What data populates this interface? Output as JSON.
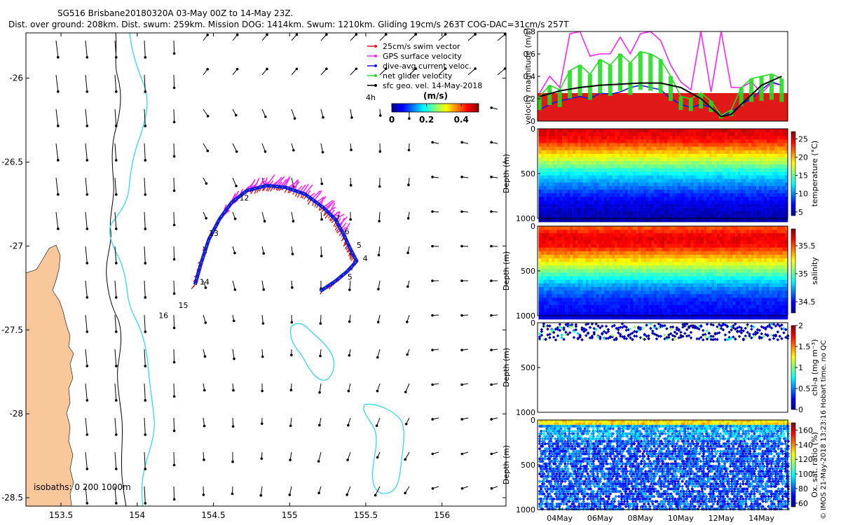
{
  "header": {
    "line1": "SG516 Brisbane20180320A 03-May 00Z to 14-May 23Z.",
    "line2": "Dist. over ground: 208km. Dist. swum: 259km. Mission DOG: 1414km. Swum: 1210km. Gliding 19cm/s 263T COG-DAC=31cm/s 257T"
  },
  "credit": "© IMOS 21-May-2018 13:23:16 Hobart time. no QC",
  "colors": {
    "land": "#f8c89a",
    "isobath_200": "#000000",
    "isobath_1000": "#22d8e8",
    "swim": "#e01818",
    "gps": "#ff20ff",
    "dac": "#1818e0",
    "net": "#22dd22",
    "sfc": "#000000"
  },
  "chart_data": [
    {
      "type": "map",
      "x_ticks": [
        153.5,
        154,
        154.5,
        155,
        155.5,
        156
      ],
      "x_tick_labels": [
        "153.5",
        "154",
        "154.5",
        "155",
        "155.5",
        "156"
      ],
      "y_ticks": [
        -26,
        -26.5,
        -27,
        -27.5,
        -28,
        -28.5
      ],
      "y_tick_labels": [
        "-26",
        "-26.5",
        "-27",
        "-27.5",
        "-28",
        "-28.5"
      ],
      "xlim": [
        153.27,
        156.42
      ],
      "ylim": [
        -28.55,
        -25.73
      ],
      "legend": {
        "position": "top-right",
        "entries": [
          {
            "label": "25cm/s swim vector",
            "color": "#e01818"
          },
          {
            "label": "GPS surface velocity",
            "color": "#ff20ff"
          },
          {
            "label": "dive-avg current veloc.",
            "color": "#1818e0"
          },
          {
            "label": "net glider velocity",
            "color": "#22dd22"
          },
          {
            "label": "sfc geo. vel. 14-May-2018",
            "color": "#000000"
          }
        ],
        "colorbar_title": "(m/s)",
        "colorbar_ticks": [
          0,
          0.2,
          0.4
        ],
        "colorbar_tick_labels": [
          "0",
          "0.2",
          "0.4"
        ],
        "colorbar_range": [
          0,
          0.5
        ],
        "vector_scale_label": "4h"
      },
      "isobath_label": "isobaths: 0   200   1000m",
      "track": [
        {
          "lon": 154.38,
          "lat": -27.23
        },
        {
          "lon": 154.42,
          "lat": -27.1
        },
        {
          "lon": 154.47,
          "lat": -26.96
        },
        {
          "lon": 154.54,
          "lat": -26.84
        },
        {
          "lon": 154.62,
          "lat": -26.74
        },
        {
          "lon": 154.72,
          "lat": -26.67
        },
        {
          "lon": 154.85,
          "lat": -26.64
        },
        {
          "lon": 154.97,
          "lat": -26.65
        },
        {
          "lon": 155.1,
          "lat": -26.69
        },
        {
          "lon": 155.22,
          "lat": -26.77
        },
        {
          "lon": 155.3,
          "lat": -26.84
        },
        {
          "lon": 155.36,
          "lat": -26.94
        },
        {
          "lon": 155.4,
          "lat": -27.02
        },
        {
          "lon": 155.44,
          "lat": -27.09
        },
        {
          "lon": 155.38,
          "lat": -27.15
        },
        {
          "lon": 155.3,
          "lat": -27.21
        },
        {
          "lon": 155.2,
          "lat": -27.27
        }
      ],
      "day_labels": [
        {
          "text": "4",
          "lon": 155.48,
          "lat": -27.09
        },
        {
          "text": "5",
          "lon": 155.38,
          "lat": -27.2
        },
        {
          "text": "5",
          "lon": 155.44,
          "lat": -27.01
        },
        {
          "text": "6",
          "lon": 155.36,
          "lat": -26.93
        },
        {
          "text": "7",
          "lon": 155.3,
          "lat": -26.85
        },
        {
          "text": "12",
          "lon": 154.67,
          "lat": -26.73
        },
        {
          "text": "13",
          "lon": 154.47,
          "lat": -26.94
        },
        {
          "text": "14",
          "lon": 154.41,
          "lat": -27.23
        },
        {
          "text": "15",
          "lon": 154.27,
          "lat": -27.37
        },
        {
          "text": "16",
          "lon": 154.14,
          "lat": -27.43
        }
      ]
    },
    {
      "type": "line",
      "ylabel": "velocity magnitude (m/s)",
      "ylim": [
        0,
        0.8
      ],
      "y_ticks": [
        0,
        0.2,
        0.4,
        0.6,
        0.8
      ],
      "y_tick_labels": [
        "0",
        "0.2",
        "0.4",
        "0.6",
        "0.8"
      ],
      "xlim": [
        2.9,
        15.3
      ],
      "series": [
        {
          "name": "GPS surface velocity",
          "color": "#ff20ff",
          "x": [
            3,
            3.5,
            4,
            4.5,
            5,
            5.5,
            6,
            6.5,
            7,
            7.5,
            8,
            8.5,
            9,
            9.5,
            10,
            10.5,
            11,
            11.5,
            12,
            12.5,
            13,
            13.5,
            14,
            14.5,
            15
          ],
          "y": [
            0.25,
            0.4,
            0.3,
            0.78,
            0.8,
            0.58,
            0.6,
            0.6,
            0.75,
            0.6,
            0.78,
            0.8,
            0.72,
            0.5,
            0.35,
            0.28,
            0.8,
            0.26,
            0.8,
            0.3,
            0.3,
            0.35,
            0.25,
            0.34,
            0.32
          ]
        },
        {
          "name": "dive-avg current veloc.",
          "color": "#1818e0",
          "x": [
            3,
            3.5,
            4,
            4.5,
            5,
            5.5,
            6,
            6.5,
            7,
            7.5,
            8,
            8.5,
            9,
            9.5,
            10,
            10.5,
            11,
            11.5,
            12,
            12.5,
            13,
            13.5,
            14,
            14.5,
            15
          ],
          "y": [
            0.1,
            0.15,
            0.18,
            0.2,
            0.22,
            0.2,
            0.25,
            0.24,
            0.26,
            0.3,
            0.32,
            0.3,
            0.28,
            0.2,
            0.15,
            0.12,
            0.15,
            0.12,
            0.05,
            0.08,
            0.15,
            0.2,
            0.28,
            0.35,
            0.32
          ]
        },
        {
          "name": "net glider velocity",
          "color": "#22dd22",
          "x": [
            3,
            3.5,
            4,
            4.5,
            5,
            5.5,
            6,
            6.5,
            7,
            7.5,
            8,
            8.5,
            9,
            9.5,
            10,
            10.5,
            11,
            11.5,
            12,
            12.5,
            13,
            13.5,
            14,
            14.5,
            15
          ],
          "y": [
            0.22,
            0.32,
            0.28,
            0.45,
            0.5,
            0.42,
            0.55,
            0.5,
            0.6,
            0.52,
            0.62,
            0.6,
            0.55,
            0.4,
            0.22,
            0.2,
            0.25,
            0.18,
            0.05,
            0.1,
            0.3,
            0.38,
            0.4,
            0.42,
            0.38
          ]
        },
        {
          "name": "sfc geo. vel. 14-May-2018",
          "color": "#000000",
          "x": [
            3,
            4,
            5,
            6,
            7,
            8,
            9,
            10,
            11,
            12,
            12.5,
            13,
            14,
            15
          ],
          "y": [
            0.22,
            0.27,
            0.3,
            0.32,
            0.33,
            0.34,
            0.34,
            0.3,
            0.2,
            0.04,
            0.06,
            0.15,
            0.32,
            0.4
          ]
        },
        {
          "name": "25cm/s swim vector",
          "color": "#e01818",
          "x": [
            3,
            15
          ],
          "y": [
            0.25,
            0.25
          ]
        }
      ]
    },
    {
      "type": "heatmap",
      "variable": "temperature (°C)",
      "ylabel": "Depth (m)",
      "ylim": [
        1000,
        0
      ],
      "y_ticks": [
        0,
        500,
        1000
      ],
      "y_tick_labels": [
        "0",
        "500",
        "1000"
      ],
      "xlim": [
        2.9,
        15.3
      ],
      "colorbar_ticks": [
        5,
        10,
        15,
        20,
        25
      ],
      "colorbar_tick_labels": [
        "5",
        "10",
        "15",
        "20",
        "25"
      ],
      "colorbar_range": [
        4,
        27
      ],
      "depth_profile": {
        "depths": [
          0,
          100,
          200,
          300,
          400,
          500,
          600,
          700,
          800,
          900,
          1000
        ],
        "values": [
          25,
          24,
          21,
          18,
          15,
          12,
          10,
          8,
          6.5,
          5.5,
          5
        ]
      }
    },
    {
      "type": "heatmap",
      "variable": "salinity",
      "ylabel": "Depth (m)",
      "ylim": [
        1000,
        0
      ],
      "y_ticks": [
        0,
        500,
        1000
      ],
      "y_tick_labels": [
        "0",
        "500",
        "1000"
      ],
      "xlim": [
        2.9,
        15.3
      ],
      "colorbar_ticks": [
        34.5,
        35,
        35.5
      ],
      "colorbar_tick_labels": [
        "34.5",
        "35",
        "35.5"
      ],
      "colorbar_range": [
        34.3,
        35.8
      ],
      "depth_profile": {
        "depths": [
          0,
          100,
          200,
          300,
          400,
          500,
          600,
          700,
          800,
          900,
          1000
        ],
        "values": [
          35.5,
          35.65,
          35.6,
          35.4,
          35.2,
          35.0,
          34.8,
          34.65,
          34.55,
          34.5,
          34.45
        ]
      }
    },
    {
      "type": "scatter",
      "variable": "chl-a (mg m⁻³)",
      "ylabel": "Depth (m)",
      "ylim": [
        1000,
        0
      ],
      "y_ticks": [
        0,
        500,
        1000
      ],
      "y_tick_labels": [
        "0",
        "500",
        "1000"
      ],
      "xlim": [
        2.9,
        15.3
      ],
      "colorbar_ticks": [
        0,
        0.5,
        1,
        1.5,
        2
      ],
      "colorbar_tick_labels": [
        "0",
        "0.5",
        "1",
        "1.5",
        "2"
      ],
      "colorbar_range": [
        0,
        2
      ],
      "depth_range_of_points": [
        0,
        180
      ]
    },
    {
      "type": "scatter",
      "variable": "Ox. sat. ratio (%)",
      "ylabel": "Depth (m)",
      "ylim": [
        1000,
        0
      ],
      "y_ticks": [
        0,
        500,
        1000
      ],
      "y_tick_labels": [
        "0",
        "500",
        "1000"
      ],
      "xlim": [
        2.9,
        15.3
      ],
      "x_ticks": [
        4,
        6,
        8,
        10,
        12,
        14
      ],
      "x_tick_labels": [
        "04May",
        "06May",
        "08May",
        "10May",
        "12May",
        "14May"
      ],
      "colorbar_ticks": [
        60,
        80,
        100,
        120,
        140,
        160
      ],
      "colorbar_tick_labels": [
        "60",
        "80",
        "100",
        "120",
        "140",
        "160"
      ],
      "colorbar_range": [
        55,
        170
      ]
    }
  ]
}
